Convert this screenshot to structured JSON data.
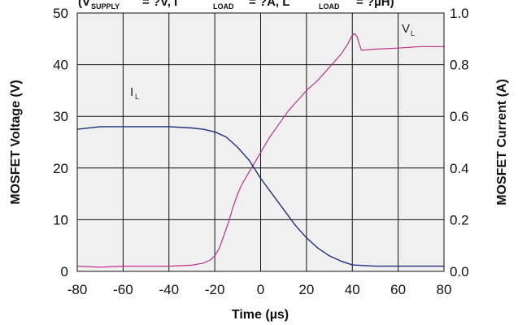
{
  "chart_data": {
    "type": "line",
    "title": {
      "a": "(V",
      "a_sub": "SUPPLY",
      "b": "= ?V, I",
      "b_sub": "LOAD",
      "c": "= ?A, L",
      "c_sub": "LOAD",
      "d": "= ?µH)"
    },
    "xlabel": "Time (µs)",
    "ylabel_left": "MOSFET Voltage (V)",
    "ylabel_right": "MOSFET Current (A)",
    "xlim": [
      -80,
      80
    ],
    "ylim_left": [
      0,
      50
    ],
    "ylim_right": [
      0.0,
      1.0
    ],
    "x_ticks": [
      "-80",
      "-60",
      "-40",
      "-20",
      "0",
      "20",
      "40",
      "60",
      "80"
    ],
    "y_left_ticks": [
      "0",
      "10",
      "20",
      "30",
      "40",
      "50"
    ],
    "y_right_ticks": [
      "0.0",
      "0.2",
      "0.4",
      "0.6",
      "0.8",
      "1.0"
    ],
    "grid": true,
    "series": [
      {
        "name": "V",
        "name_sub": "L",
        "axis": "left",
        "color": "#c0308a",
        "x": [
          -80,
          -70,
          -60,
          -50,
          -40,
          -30,
          -25,
          -22,
          -20,
          -18,
          -16,
          -14,
          -12,
          -10,
          -8,
          -6,
          -4,
          -2,
          0,
          4,
          8,
          12,
          16,
          20,
          25,
          30,
          35,
          38,
          40,
          41,
          42,
          43,
          44,
          50,
          60,
          70,
          80
        ],
        "values": [
          1,
          0.8,
          1,
          1,
          1,
          1.2,
          1.6,
          2.2,
          3,
          4.5,
          7,
          9.5,
          12.5,
          15,
          17,
          18.5,
          20,
          21.5,
          23,
          26,
          28.5,
          31,
          33,
          35,
          37,
          39.5,
          42,
          44,
          45.7,
          46,
          45.5,
          44,
          42.8,
          43,
          43.2,
          43.5,
          43.5
        ]
      },
      {
        "name": "I",
        "name_sub": "L",
        "axis": "right",
        "color": "#1f2f7a",
        "x": [
          -80,
          -70,
          -60,
          -50,
          -40,
          -30,
          -25,
          -20,
          -15,
          -10,
          -5,
          0,
          5,
          10,
          15,
          20,
          25,
          30,
          35,
          40,
          50,
          60,
          70,
          80
        ],
        "values": [
          0.55,
          0.56,
          0.56,
          0.56,
          0.56,
          0.555,
          0.55,
          0.54,
          0.52,
          0.48,
          0.43,
          0.36,
          0.3,
          0.24,
          0.18,
          0.13,
          0.09,
          0.06,
          0.04,
          0.025,
          0.02,
          0.02,
          0.02,
          0.02
        ]
      }
    ]
  }
}
